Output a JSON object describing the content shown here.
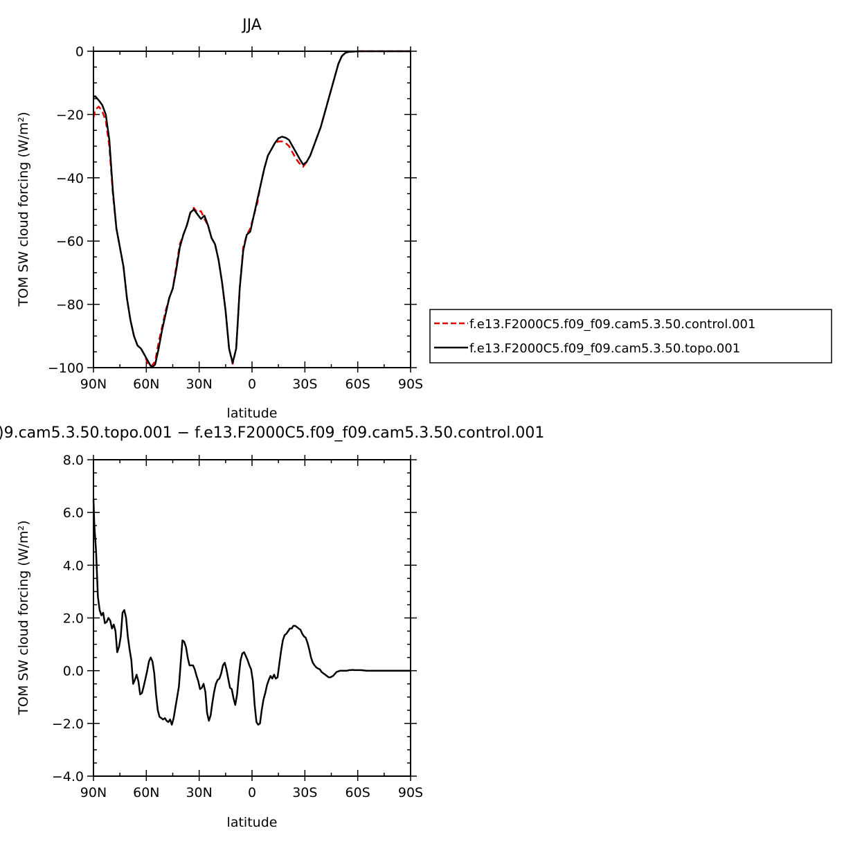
{
  "chart_data": [
    {
      "type": "line",
      "title": "JJA",
      "xlabel": "latitude",
      "ylabel": "TOM SW cloud forcing (W/m²)",
      "xlim": [
        90,
        -90
      ],
      "ylim": [
        -100,
        0
      ],
      "x_ticks": [
        90,
        60,
        30,
        0,
        -30,
        -60,
        -90
      ],
      "x_tick_labels": [
        "90N",
        "60N",
        "30N",
        "0",
        "30S",
        "60S",
        "90S"
      ],
      "y_ticks": [
        0,
        -20,
        -40,
        -60,
        -80,
        -100
      ],
      "y_tick_labels": [
        "0",
        "−20",
        "−40",
        "−60",
        "−80",
        "−100"
      ],
      "legend_position": "right",
      "series": [
        {
          "name": "f.e13.F2000C5.f09_f09.cam5.3.50.control.001",
          "color": "#e00000",
          "dash": "dashed",
          "x": [
            90,
            89,
            87,
            85,
            83,
            81,
            79,
            77,
            75,
            73,
            71,
            69,
            67,
            65,
            63,
            61,
            59,
            57,
            55,
            53,
            51,
            49,
            47,
            45,
            43,
            41,
            39,
            37,
            35,
            33,
            31,
            29,
            27,
            25,
            23,
            21,
            19,
            17,
            15,
            13,
            11,
            9,
            8,
            7,
            5,
            3,
            1,
            -1,
            -3,
            -5,
            -7,
            -9,
            -11,
            -13,
            -15,
            -17,
            -19,
            -21,
            -23,
            -25,
            -27,
            -29,
            -31,
            -33,
            -35,
            -37,
            -39,
            -41,
            -43,
            -45,
            -47,
            -49,
            -51,
            -53,
            -55,
            -57,
            -59,
            -61,
            -63,
            -65,
            -67,
            -69,
            -71,
            -73,
            -75,
            -80,
            -85,
            -90
          ],
          "y": [
            -21,
            -18.5,
            -17.5,
            -19,
            -22,
            -30,
            -45,
            -56,
            -62,
            -68,
            -78,
            -85,
            -90,
            -93,
            -94,
            -96,
            -99,
            -99.5,
            -98,
            -92,
            -87,
            -82,
            -78,
            -75,
            -68,
            -61,
            -58,
            -55,
            -51,
            -49.5,
            -51,
            -50.5,
            -53,
            -55,
            -59,
            -61,
            -66,
            -73,
            -82,
            -94,
            -98.8,
            -94,
            -85,
            -75,
            -62,
            -58,
            -56,
            -52,
            -48,
            -42,
            -37,
            -33,
            -31,
            -29,
            -28.5,
            -28.5,
            -29,
            -30,
            -32,
            -34,
            -35.5,
            -36.5,
            -35,
            -33,
            -30,
            -27,
            -24,
            -20,
            -16,
            -12,
            -8,
            -4,
            -1.5,
            -0.5,
            -0.2,
            -0.1,
            -0.05,
            0,
            0,
            0,
            0,
            0,
            0,
            0,
            0,
            0,
            0,
            0
          ]
        },
        {
          "name": "f.e13.F2000C5.f09_f09.cam5.3.50.topo.001",
          "color": "#000000",
          "dash": "solid",
          "x": [
            90,
            89,
            87,
            85,
            83,
            81,
            79,
            77,
            75,
            73,
            71,
            69,
            67,
            65,
            63,
            61,
            59,
            57,
            55,
            53,
            51,
            49,
            47,
            45,
            43,
            41,
            39,
            37,
            35,
            33,
            31,
            29,
            27,
            25,
            23,
            21,
            19,
            17,
            15,
            13,
            11,
            9,
            8,
            7,
            5,
            3,
            1,
            -1,
            -3,
            -5,
            -7,
            -9,
            -11,
            -13,
            -15,
            -17,
            -19,
            -21,
            -23,
            -25,
            -27,
            -29,
            -31,
            -33,
            -35,
            -37,
            -39,
            -41,
            -43,
            -45,
            -47,
            -49,
            -51,
            -53,
            -55,
            -57,
            -59,
            -61,
            -63,
            -65,
            -67,
            -69,
            -71,
            -73,
            -75,
            -80,
            -85,
            -90
          ],
          "y": [
            -14.5,
            -14.2,
            -15.5,
            -17,
            -20,
            -28,
            -44,
            -56,
            -62,
            -68,
            -78,
            -85,
            -90,
            -93,
            -94,
            -96,
            -98,
            -100,
            -99,
            -94,
            -88,
            -83,
            -78,
            -75,
            -69,
            -62,
            -58,
            -55,
            -51,
            -50,
            -51.5,
            -53,
            -52,
            -55,
            -59,
            -61,
            -66,
            -73,
            -82,
            -94,
            -98.5,
            -94,
            -85,
            -75,
            -63,
            -58,
            -57,
            -52,
            -47,
            -42,
            -37,
            -33,
            -31,
            -29,
            -27.5,
            -27,
            -27.3,
            -28,
            -30,
            -32,
            -34,
            -35.8,
            -35,
            -33,
            -30,
            -27,
            -24,
            -20,
            -16,
            -12,
            -8,
            -4,
            -1.5,
            -0.5,
            -0.2,
            -0.1,
            -0.05,
            0,
            0,
            0,
            0,
            0,
            0,
            0,
            0,
            0,
            0,
            0
          ]
        }
      ]
    },
    {
      "type": "line",
      "title": ")9.cam5.3.50.topo.001  −  f.e13.F2000C5.f09_f09.cam5.3.50.control.001",
      "xlabel": "latitude",
      "ylabel": "TOM SW cloud forcing (W/m²)",
      "xlim": [
        90,
        -90
      ],
      "ylim": [
        -4,
        8
      ],
      "x_ticks": [
        90,
        60,
        30,
        0,
        -30,
        -60,
        -90
      ],
      "x_tick_labels": [
        "90N",
        "60N",
        "30N",
        "0",
        "30S",
        "60S",
        "90S"
      ],
      "y_ticks": [
        8,
        6,
        4,
        2,
        0,
        -2,
        -4
      ],
      "y_tick_labels": [
        "8.0",
        "6.0",
        "4.0",
        "2.0",
        "0.0",
        "−2.0",
        "−4.0"
      ],
      "series": [
        {
          "color": "#000000",
          "dash": "solid",
          "x": [
            90,
            89.5,
            88.5,
            87.5,
            86.5,
            85.5,
            84.5,
            83.5,
            82.5,
            81.5,
            80.5,
            79.5,
            78.5,
            77.5,
            76.5,
            75.5,
            74.5,
            73.5,
            72.5,
            71.5,
            70.5,
            69.5,
            68.5,
            67.5,
            66.5,
            65.5,
            64.5,
            63.5,
            62.5,
            61.5,
            60.5,
            59.5,
            58.5,
            57.5,
            56.5,
            55.5,
            54.5,
            53.5,
            52.5,
            51.5,
            50.5,
            49.5,
            48.5,
            47.5,
            46.5,
            45.5,
            44.5,
            43.5,
            42.5,
            41.5,
            40.5,
            39.5,
            38.5,
            37.5,
            36.5,
            35.5,
            34.5,
            33.5,
            32.5,
            31.5,
            30.5,
            29.5,
            28.5,
            27.5,
            26.5,
            25.5,
            24.5,
            23.5,
            22.5,
            21.5,
            20.5,
            19.5,
            18.5,
            17.5,
            16.5,
            15.5,
            14.5,
            13.5,
            12.5,
            11.5,
            10.5,
            9.5,
            8.5,
            7.5,
            6.5,
            5.5,
            4.5,
            3.5,
            2.5,
            1.5,
            0.5,
            -0.5,
            -1.5,
            -2.5,
            -3.5,
            -4.5,
            -5.5,
            -6.5,
            -7.5,
            -8.5,
            -9.5,
            -10.5,
            -11.5,
            -12.5,
            -13.5,
            -14.5,
            -15.5,
            -16.5,
            -17.5,
            -18.5,
            -19.5,
            -20.5,
            -21.5,
            -22.5,
            -23.5,
            -24.5,
            -25.5,
            -26.5,
            -27.5,
            -28.5,
            -29.5,
            -30.5,
            -31.5,
            -32.5,
            -33.5,
            -34.5,
            -35.5,
            -36.5,
            -37.5,
            -38.5,
            -39.5,
            -40.5,
            -41.5,
            -42.5,
            -43.5,
            -44.5,
            -46,
            -48,
            -50,
            -52,
            -54,
            -55,
            -56,
            -57,
            -58,
            -60,
            -62,
            -65,
            -70,
            -75,
            -80,
            -85,
            -90
          ],
          "y": [
            6.5,
            5.5,
            4.5,
            2.8,
            2.3,
            2.1,
            2.2,
            1.8,
            1.85,
            2.0,
            1.9,
            1.6,
            1.75,
            1.5,
            0.7,
            0.9,
            1.3,
            2.2,
            2.3,
            2.0,
            1.3,
            0.8,
            0.4,
            -0.5,
            -0.35,
            -0.15,
            -0.4,
            -0.9,
            -0.85,
            -0.6,
            -0.3,
            0.0,
            0.35,
            0.5,
            0.35,
            -0.1,
            -0.9,
            -1.5,
            -1.75,
            -1.8,
            -1.85,
            -1.8,
            -1.9,
            -1.95,
            -1.85,
            -2.05,
            -1.8,
            -1.4,
            -1.0,
            -0.6,
            0.3,
            1.15,
            1.1,
            0.9,
            0.5,
            0.2,
            0.2,
            0.2,
            0.05,
            -0.2,
            -0.4,
            -0.7,
            -0.65,
            -0.5,
            -0.8,
            -1.6,
            -1.9,
            -1.7,
            -1.2,
            -0.8,
            -0.5,
            -0.35,
            -0.3,
            -0.1,
            0.2,
            0.3,
            0.05,
            -0.3,
            -0.65,
            -0.7,
            -1.05,
            -1.3,
            -0.9,
            -0.2,
            0.4,
            0.65,
            0.7,
            0.55,
            0.4,
            0.2,
            0.05,
            -0.4,
            -1.3,
            -1.95,
            -2.05,
            -2.0,
            -1.5,
            -1.1,
            -0.85,
            -0.55,
            -0.35,
            -0.2,
            -0.3,
            -0.15,
            -0.3,
            -0.25,
            0.25,
            0.75,
            1.15,
            1.35,
            1.4,
            1.5,
            1.6,
            1.6,
            1.7,
            1.7,
            1.65,
            1.6,
            1.55,
            1.4,
            1.3,
            1.25,
            1.05,
            0.8,
            0.5,
            0.3,
            0.2,
            0.12,
            0.08,
            0.05,
            -0.05,
            -0.1,
            -0.15,
            -0.2,
            -0.25,
            -0.25,
            -0.2,
            -0.05,
            0.0,
            0.0,
            0.0,
            0.02,
            0.02,
            0.03,
            0.02,
            0.02,
            0.02,
            0.0,
            0.0,
            0.0,
            0.0,
            0.0,
            0.0
          ]
        }
      ]
    }
  ]
}
